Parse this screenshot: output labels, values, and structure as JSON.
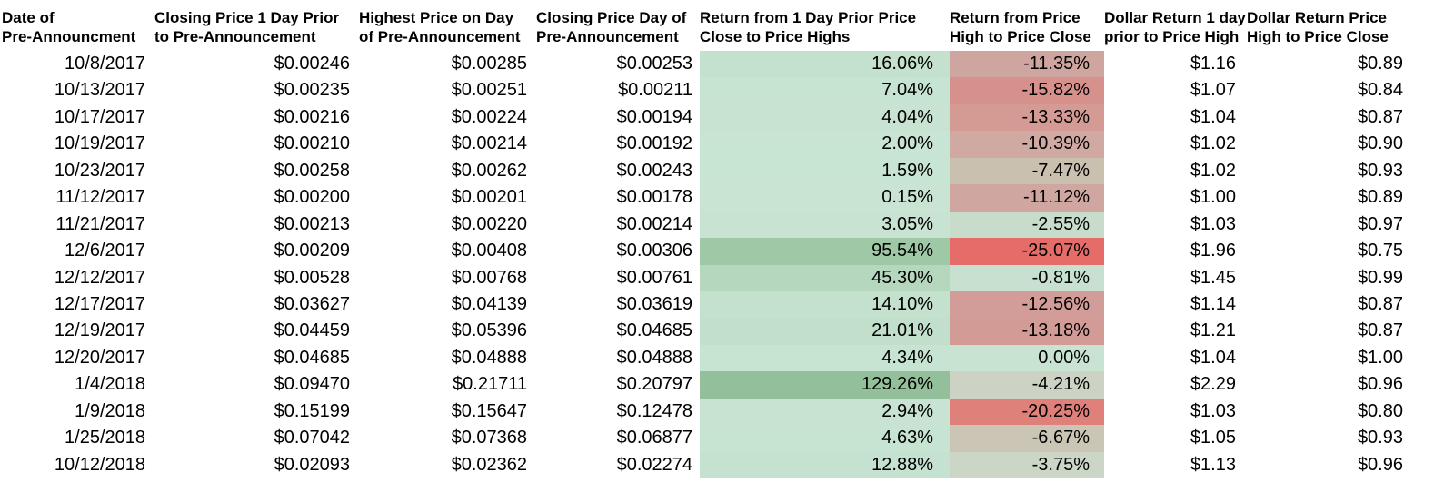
{
  "app": {
    "background_color": "#ffffff",
    "text_color": "#000000"
  },
  "table": {
    "columns": [
      {
        "id": "date",
        "line1": "Date of",
        "line2": "Pre-Announcment"
      },
      {
        "id": "close-prior",
        "line1": "Closing Price 1 Day Prior",
        "line2": "to Pre-Announcement"
      },
      {
        "id": "high-day",
        "line1": "Highest Price on Day",
        "line2": "of Pre-Announcement"
      },
      {
        "id": "close-day",
        "line1": "Closing Price Day of",
        "line2": "Pre-Announcement"
      },
      {
        "id": "return-high",
        "line1": "Return from 1 Day Prior Price",
        "line2": "Close to Price Highs"
      },
      {
        "id": "return-close",
        "line1": "Return from Price",
        "line2": "High to Price Close"
      },
      {
        "id": "dollar-high",
        "line1": "Dollar Return 1 day",
        "line2": "prior to Price High"
      },
      {
        "id": "dollar-close",
        "line1": "Dollar Return Price",
        "line2": "High to Price Close"
      }
    ],
    "rows": [
      [
        "10/8/2017",
        "$0.00246",
        "$0.00285",
        "$0.00253",
        "16.06%",
        "-11.35%",
        "$1.16",
        "$0.89"
      ],
      [
        "10/13/2017",
        "$0.00235",
        "$0.00251",
        "$0.00211",
        "7.04%",
        "-15.82%",
        "$1.07",
        "$0.84"
      ],
      [
        "10/17/2017",
        "$0.00216",
        "$0.00224",
        "$0.00194",
        "4.04%",
        "-13.33%",
        "$1.04",
        "$0.87"
      ],
      [
        "10/19/2017",
        "$0.00210",
        "$0.00214",
        "$0.00192",
        "2.00%",
        "-10.39%",
        "$1.02",
        "$0.90"
      ],
      [
        "10/23/2017",
        "$0.00258",
        "$0.00262",
        "$0.00243",
        "1.59%",
        "-7.47%",
        "$1.02",
        "$0.93"
      ],
      [
        "11/12/2017",
        "$0.00200",
        "$0.00201",
        "$0.00178",
        "0.15%",
        "-11.12%",
        "$1.00",
        "$0.89"
      ],
      [
        "11/21/2017",
        "$0.00213",
        "$0.00220",
        "$0.00214",
        "3.05%",
        "-2.55%",
        "$1.03",
        "$0.97"
      ],
      [
        "12/6/2017",
        "$0.00209",
        "$0.00408",
        "$0.00306",
        "95.54%",
        "-25.07%",
        "$1.96",
        "$0.75"
      ],
      [
        "12/12/2017",
        "$0.00528",
        "$0.00768",
        "$0.00761",
        "45.30%",
        "-0.81%",
        "$1.45",
        "$0.99"
      ],
      [
        "12/17/2017",
        "$0.03627",
        "$0.04139",
        "$0.03619",
        "14.10%",
        "-12.56%",
        "$1.14",
        "$0.87"
      ],
      [
        "12/19/2017",
        "$0.04459",
        "$0.05396",
        "$0.04685",
        "21.01%",
        "-13.18%",
        "$1.21",
        "$0.87"
      ],
      [
        "12/20/2017",
        "$0.04685",
        "$0.04888",
        "$0.04888",
        "4.34%",
        "0.00%",
        "$1.04",
        "$1.00"
      ],
      [
        "1/4/2018",
        "$0.09470",
        "$0.21711",
        "$0.20797",
        "129.26%",
        "-4.21%",
        "$2.29",
        "$0.96"
      ],
      [
        "1/9/2018",
        "$0.15199",
        "$0.15647",
        "$0.12478",
        "2.94%",
        "-20.25%",
        "$1.03",
        "$0.80"
      ],
      [
        "1/25/2018",
        "$0.07042",
        "$0.07368",
        "$0.06877",
        "4.63%",
        "-6.67%",
        "$1.05",
        "$0.93"
      ],
      [
        "10/12/2018",
        "$0.02093",
        "$0.02362",
        "$0.02274",
        "12.88%",
        "-3.75%",
        "$1.13",
        "$0.96"
      ]
    ],
    "cell_colors": {
      "return_high": [
        "#c4e1ce",
        "#c7e3d1",
        "#c8e3d2",
        "#c8e4d2",
        "#c8e4d2",
        "#c9e4d3",
        "#c8e3d1",
        "#9fc9a6",
        "#b5d7be",
        "#c4e1ce",
        "#c1dfcb",
        "#c7e3d1",
        "#93c09a",
        "#c8e3d1",
        "#c7e3d1",
        "#c5e1cf"
      ],
      "return_close": [
        "#cfa59f",
        "#d7918c",
        "#d49a94",
        "#cfa9a2",
        "#c9c0b0",
        "#cfa7a0",
        "#c8dccb",
        "#e56c69",
        "#c8e0cf",
        "#d29d98",
        "#d39b95",
        "#c9e3d2",
        "#cdd3c4",
        "#e0807b",
        "#cac5b4",
        "#cbd6c6"
      ]
    }
  }
}
